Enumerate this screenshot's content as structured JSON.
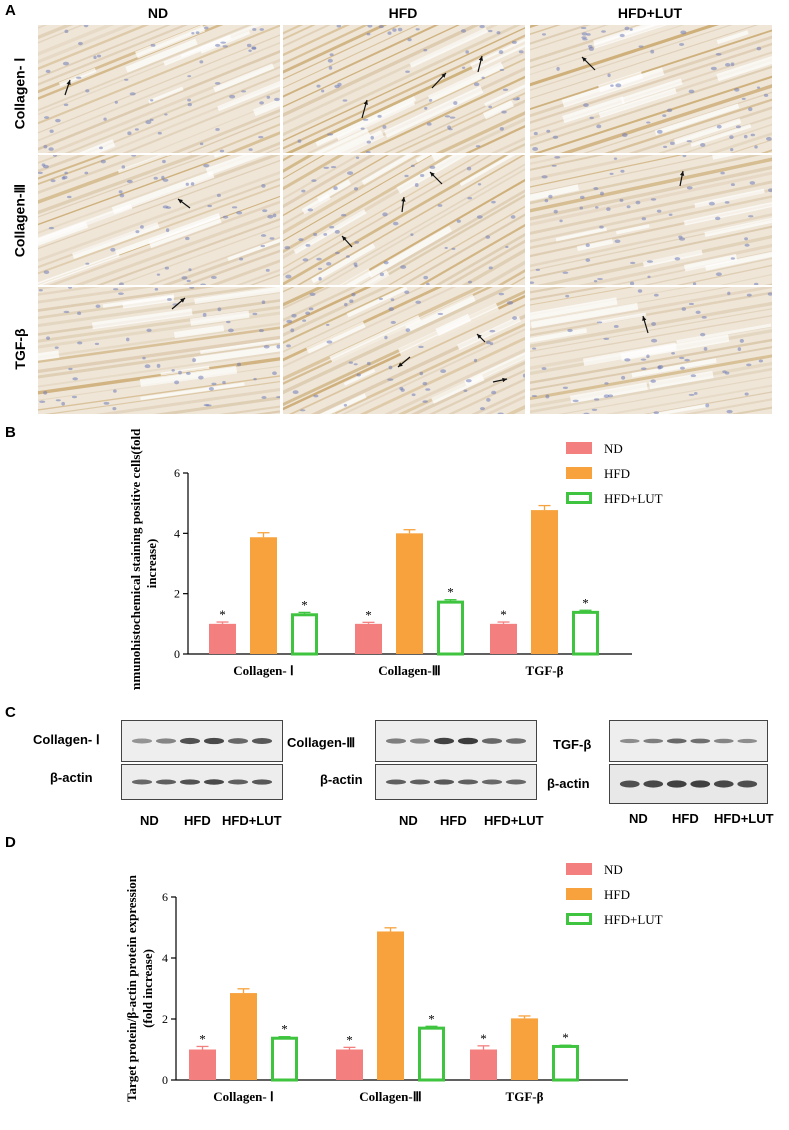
{
  "panels": {
    "a": {
      "letter": "A",
      "columns": [
        "ND",
        "HFD",
        "HFD+LUT"
      ],
      "rows": [
        "Collagen- Ⅰ",
        "Collagen-Ⅲ",
        "TGF-β"
      ],
      "colors": {
        "tissue": "#efe6d8",
        "fiber": "#d9c6a8",
        "stain": "#c8a66a",
        "nuclei": "#6f7bb8"
      }
    },
    "c": {
      "letter": "C",
      "blots": [
        {
          "target": "Collagen- Ⅰ",
          "loading": "β-actin",
          "lanes": [
            "ND",
            "HFD",
            "HFD+LUT"
          ]
        },
        {
          "target": "Collagen-Ⅲ",
          "loading": "β-actin",
          "lanes": [
            "ND",
            "HFD",
            "HFD+LUT"
          ]
        },
        {
          "target": "TGF-β",
          "loading": "β-actin",
          "lanes": [
            "ND",
            "HFD",
            "HFD+LUT"
          ]
        }
      ]
    }
  },
  "chart_data": [
    {
      "panel": "B",
      "type": "bar",
      "categories": [
        "Collagen- Ⅰ",
        "Collagen-Ⅲ",
        "TGF-β"
      ],
      "series": [
        {
          "name": "ND",
          "values": [
            1.0,
            1.0,
            1.0
          ],
          "errors": [
            0.06,
            0.05,
            0.06
          ],
          "color": "#f47f7f",
          "style": "filled"
        },
        {
          "name": "HFD",
          "values": [
            3.87,
            4.0,
            4.77
          ],
          "errors": [
            0.15,
            0.12,
            0.15
          ],
          "color": "#f7a23c",
          "style": "filled"
        },
        {
          "name": "HFD+LUT",
          "values": [
            1.3,
            1.72,
            1.38
          ],
          "errors": [
            0.08,
            0.08,
            0.07
          ],
          "color": "#3ec43e",
          "style": "outline"
        }
      ],
      "significance": [
        [
          "*",
          "",
          "*"
        ],
        [
          "*",
          "",
          "*"
        ],
        [
          "*",
          "",
          "*"
        ]
      ],
      "ylabel": "Immunohistochemical staining positive cells(fold increase)",
      "ylim": [
        0,
        6
      ],
      "yticks": [
        0,
        2,
        4,
        6
      ],
      "legend": "top-right"
    },
    {
      "panel": "D",
      "type": "bar",
      "categories": [
        "Collagen- Ⅰ",
        "Collagen-Ⅲ",
        "TGF-β"
      ],
      "series": [
        {
          "name": "ND",
          "values": [
            1.0,
            1.0,
            1.0
          ],
          "errors": [
            0.1,
            0.07,
            0.12
          ],
          "color": "#f47f7f",
          "style": "filled"
        },
        {
          "name": "HFD",
          "values": [
            2.85,
            4.87,
            2.02
          ],
          "errors": [
            0.14,
            0.12,
            0.08
          ],
          "color": "#f7a23c",
          "style": "filled"
        },
        {
          "name": "HFD+LUT",
          "values": [
            1.37,
            1.7,
            1.1
          ],
          "errors": [
            0.05,
            0.06,
            0.04
          ],
          "color": "#3ec43e",
          "style": "outline"
        }
      ],
      "significance": [
        [
          "*",
          "",
          "*"
        ],
        [
          "*",
          "",
          "*"
        ],
        [
          "*",
          "",
          "*"
        ]
      ],
      "ylabel": "Target protein/β-actin protein expression (fold increase)",
      "ylim": [
        0,
        6
      ],
      "yticks": [
        0,
        2,
        4,
        6
      ],
      "legend": "top-right"
    }
  ]
}
